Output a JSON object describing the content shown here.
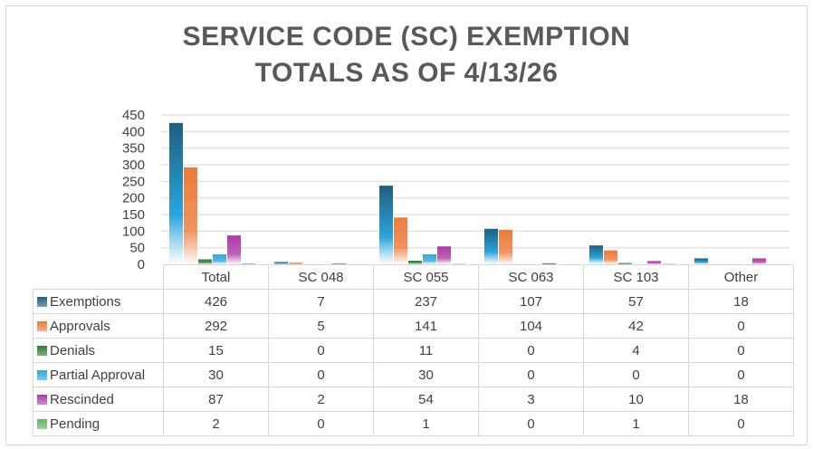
{
  "chart_data": {
    "type": "bar",
    "title_lines": [
      "SERVICE CODE (SC) EXEMPTION",
      "TOTALS AS OF  4/13/26"
    ],
    "categories": [
      "Total",
      "SC 048",
      "SC 055",
      "SC 063",
      "SC 103",
      "Other"
    ],
    "series": [
      {
        "name": "Exemptions",
        "color": "#1f5f7f",
        "values": [
          426,
          7,
          237,
          107,
          57,
          18
        ]
      },
      {
        "name": "Approvals",
        "color": "#ed7a3a",
        "values": [
          292,
          5,
          141,
          104,
          42,
          0
        ]
      },
      {
        "name": "Denials",
        "color": "#2e7d32",
        "values": [
          15,
          0,
          11,
          0,
          4,
          0
        ]
      },
      {
        "name": "Partial Approval",
        "color": "#29a8e0",
        "values": [
          30,
          0,
          30,
          0,
          0,
          0
        ]
      },
      {
        "name": "Rescinded",
        "color": "#b03aa8",
        "values": [
          87,
          2,
          54,
          3,
          10,
          18
        ]
      },
      {
        "name": "Pending",
        "color": "#5cb85c",
        "values": [
          2,
          0,
          1,
          0,
          1,
          0
        ]
      }
    ],
    "ylim": [
      0,
      450
    ],
    "yticks": [
      "0",
      "50",
      "100",
      "150",
      "200",
      "250",
      "300",
      "350",
      "400",
      "450"
    ],
    "grid": true,
    "legend": "data-table"
  }
}
